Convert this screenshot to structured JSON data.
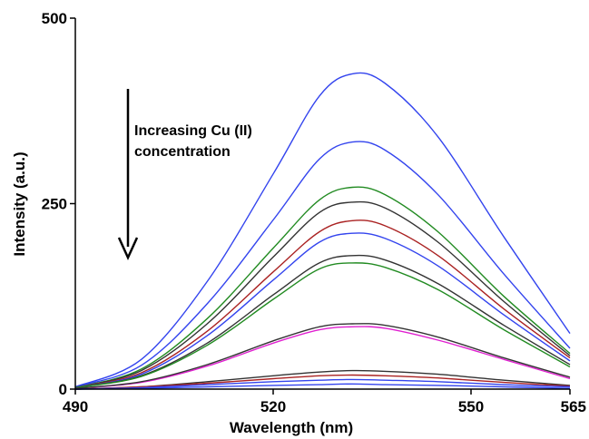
{
  "chart_data": {
    "type": "line",
    "xlabel": "Wavelength (nm)",
    "ylabel": "Intensity (a.u.)",
    "xlim": [
      490,
      565
    ],
    "ylim": [
      0,
      500
    ],
    "x_ticks": [
      490,
      520,
      550,
      565
    ],
    "y_ticks": [
      0,
      250,
      500
    ],
    "grid": false,
    "legend": "none",
    "annotation": {
      "lines": [
        "Increasing Cu (II)",
        "concentration"
      ],
      "arrow_direction": "down"
    },
    "series": [
      {
        "color": "#3344ee",
        "values": [
          [
            490,
            3
          ],
          [
            500,
            40
          ],
          [
            510,
            145
          ],
          [
            520,
            290
          ],
          [
            527,
            395
          ],
          [
            532,
            425
          ],
          [
            537,
            412
          ],
          [
            545,
            340
          ],
          [
            555,
            205
          ],
          [
            565,
            75
          ]
        ]
      },
      {
        "color": "#3344ee",
        "values": [
          [
            490,
            3
          ],
          [
            500,
            32
          ],
          [
            510,
            115
          ],
          [
            520,
            228
          ],
          [
            527,
            310
          ],
          [
            532,
            333
          ],
          [
            537,
            322
          ],
          [
            545,
            262
          ],
          [
            555,
            155
          ],
          [
            565,
            55
          ]
        ]
      },
      {
        "color": "#228b22",
        "values": [
          [
            490,
            2
          ],
          [
            500,
            27
          ],
          [
            510,
            95
          ],
          [
            520,
            190
          ],
          [
            527,
            255
          ],
          [
            532,
            272
          ],
          [
            537,
            262
          ],
          [
            545,
            212
          ],
          [
            555,
            125
          ],
          [
            565,
            48
          ]
        ]
      },
      {
        "color": "#333333",
        "values": [
          [
            490,
            2
          ],
          [
            500,
            25
          ],
          [
            510,
            88
          ],
          [
            520,
            178
          ],
          [
            527,
            238
          ],
          [
            532,
            252
          ],
          [
            537,
            244
          ],
          [
            545,
            198
          ],
          [
            555,
            118
          ],
          [
            565,
            45
          ]
        ]
      },
      {
        "color": "#aa2222",
        "values": [
          [
            490,
            2
          ],
          [
            500,
            22
          ],
          [
            510,
            78
          ],
          [
            520,
            158
          ],
          [
            527,
            212
          ],
          [
            532,
            227
          ],
          [
            537,
            220
          ],
          [
            545,
            180
          ],
          [
            555,
            108
          ],
          [
            565,
            42
          ]
        ]
      },
      {
        "color": "#3344ee",
        "values": [
          [
            490,
            2
          ],
          [
            500,
            20
          ],
          [
            510,
            72
          ],
          [
            520,
            147
          ],
          [
            527,
            198
          ],
          [
            532,
            210
          ],
          [
            537,
            203
          ],
          [
            545,
            166
          ],
          [
            555,
            100
          ],
          [
            565,
            38
          ]
        ]
      },
      {
        "color": "#333333",
        "values": [
          [
            490,
            2
          ],
          [
            500,
            18
          ],
          [
            510,
            62
          ],
          [
            520,
            127
          ],
          [
            527,
            170
          ],
          [
            532,
            180
          ],
          [
            537,
            174
          ],
          [
            545,
            142
          ],
          [
            555,
            86
          ],
          [
            565,
            33
          ]
        ]
      },
      {
        "color": "#228b22",
        "values": [
          [
            490,
            2
          ],
          [
            500,
            17
          ],
          [
            510,
            59
          ],
          [
            520,
            121
          ],
          [
            527,
            162
          ],
          [
            532,
            170
          ],
          [
            537,
            164
          ],
          [
            545,
            134
          ],
          [
            555,
            80
          ],
          [
            565,
            30
          ]
        ]
      },
      {
        "color": "#e020d0",
        "values": [
          [
            490,
            1
          ],
          [
            500,
            9
          ],
          [
            510,
            31
          ],
          [
            520,
            62
          ],
          [
            527,
            80
          ],
          [
            532,
            84
          ],
          [
            537,
            82
          ],
          [
            545,
            66
          ],
          [
            555,
            40
          ],
          [
            565,
            14
          ]
        ]
      },
      {
        "color": "#333333",
        "values": [
          [
            490,
            1
          ],
          [
            500,
            10
          ],
          [
            510,
            33
          ],
          [
            520,
            65
          ],
          [
            527,
            84
          ],
          [
            532,
            88
          ],
          [
            537,
            86
          ],
          [
            545,
            70
          ],
          [
            555,
            42
          ],
          [
            565,
            16
          ]
        ]
      },
      {
        "color": "#333333",
        "values": [
          [
            490,
            0
          ],
          [
            500,
            3
          ],
          [
            510,
            10
          ],
          [
            520,
            18
          ],
          [
            527,
            23
          ],
          [
            532,
            25
          ],
          [
            537,
            24
          ],
          [
            545,
            20
          ],
          [
            555,
            12
          ],
          [
            565,
            5
          ]
        ]
      },
      {
        "color": "#aa2222",
        "values": [
          [
            490,
            0
          ],
          [
            500,
            3
          ],
          [
            510,
            8
          ],
          [
            520,
            14
          ],
          [
            527,
            18
          ],
          [
            532,
            19
          ],
          [
            537,
            18
          ],
          [
            545,
            15
          ],
          [
            555,
            9
          ],
          [
            565,
            4
          ]
        ]
      },
      {
        "color": "#3344ee",
        "values": [
          [
            490,
            0
          ],
          [
            500,
            2
          ],
          [
            510,
            6
          ],
          [
            520,
            10
          ],
          [
            527,
            12
          ],
          [
            532,
            13
          ],
          [
            537,
            12
          ],
          [
            545,
            10
          ],
          [
            555,
            6
          ],
          [
            565,
            3
          ]
        ]
      },
      {
        "color": "#3344ee",
        "values": [
          [
            490,
            0
          ],
          [
            500,
            1
          ],
          [
            510,
            3
          ],
          [
            520,
            5
          ],
          [
            527,
            6
          ],
          [
            532,
            7
          ],
          [
            537,
            6
          ],
          [
            545,
            5
          ],
          [
            555,
            3
          ],
          [
            565,
            1
          ]
        ]
      }
    ]
  }
}
